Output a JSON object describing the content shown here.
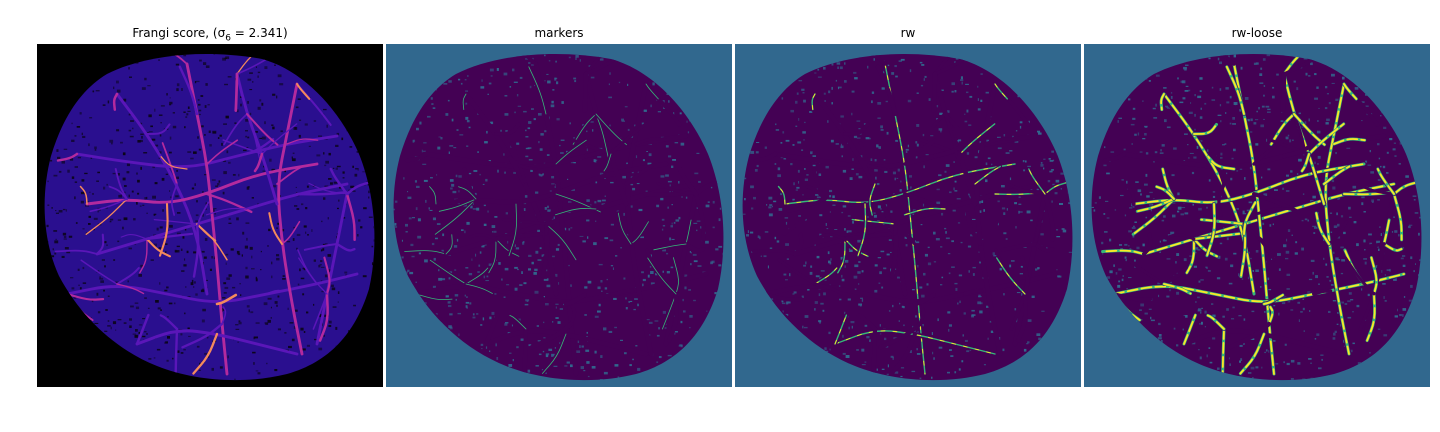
{
  "panels": [
    {
      "id": "frangi",
      "title": "Frangi score, (σ",
      "title_sub": "6",
      "title_tail": " = 2.341)",
      "colors": {
        "background": "#000000",
        "tissue": "#2a0f8f",
        "vessel_low": "#5a16b8",
        "vessel_mid": "#b32a9e",
        "vessel_high": "#f48a5c"
      }
    },
    {
      "id": "markers",
      "title": "markers",
      "colors": {
        "background": "#31688e",
        "tissue": "#440154",
        "marker": "#35b779"
      }
    },
    {
      "id": "rw",
      "title": "rw",
      "colors": {
        "background": "#31688e",
        "tissue": "#440154",
        "vessel": "#35b779",
        "highlight": "#fde725"
      }
    },
    {
      "id": "rw-loose",
      "title": "rw-loose",
      "colors": {
        "background": "#31688e",
        "tissue": "#440154",
        "vessel": "#35b779",
        "highlight": "#fde725"
      }
    }
  ]
}
